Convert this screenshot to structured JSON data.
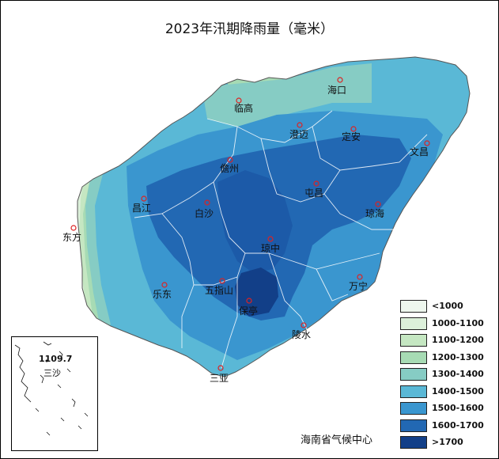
{
  "title": "2023年汛期降雨量（毫米）",
  "source": "海南省气候中心",
  "cities": [
    {
      "name": "海口"
    },
    {
      "name": "临高"
    },
    {
      "name": "澄迈"
    },
    {
      "name": "定安"
    },
    {
      "name": "文昌"
    },
    {
      "name": "儋州"
    },
    {
      "name": "屯昌"
    },
    {
      "name": "昌江"
    },
    {
      "name": "白沙"
    },
    {
      "name": "琼海"
    },
    {
      "name": "东方"
    },
    {
      "name": "琼中"
    },
    {
      "name": "五指山"
    },
    {
      "name": "万宁"
    },
    {
      "name": "乐东"
    },
    {
      "name": "保亭"
    },
    {
      "name": "陵水"
    },
    {
      "name": "三亚"
    }
  ],
  "legend": [
    {
      "label": "<1000",
      "color": "#eef7ee"
    },
    {
      "label": "1000-1100",
      "color": "#dcf0da"
    },
    {
      "label": "1100-1200",
      "color": "#c5e7c2"
    },
    {
      "label": "1200-1300",
      "color": "#a7dbb4"
    },
    {
      "label": "1300-1400",
      "color": "#86ccc4"
    },
    {
      "label": "1400-1500",
      "color": "#5ab8d6"
    },
    {
      "label": "1500-1600",
      "color": "#3a96cf"
    },
    {
      "label": "1600-1700",
      "color": "#2268b3"
    },
    {
      "label": ">1700",
      "color": "#123f88"
    }
  ],
  "inset": {
    "name": "三沙",
    "value": "1109.7"
  }
}
